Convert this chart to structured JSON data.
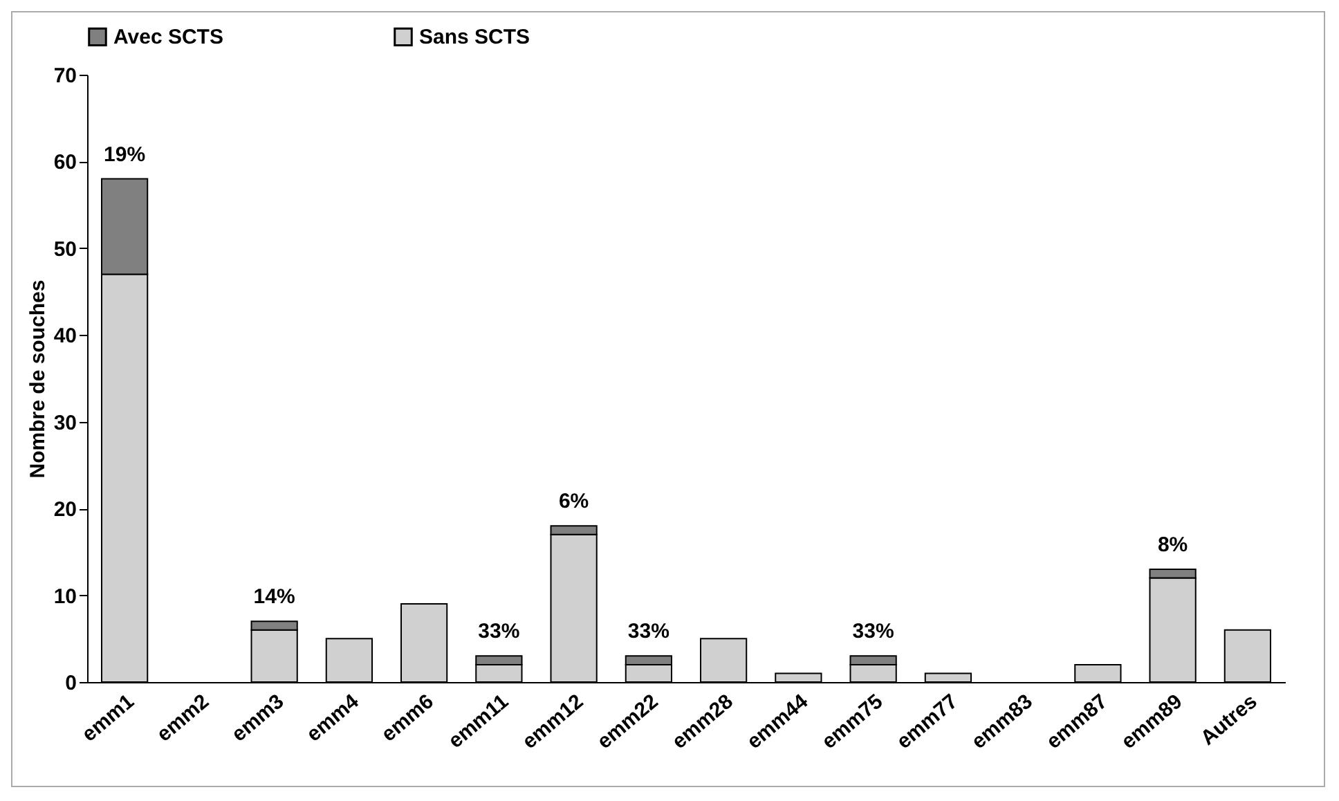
{
  "chart_data": {
    "type": "bar",
    "stacked": true,
    "ylabel": "Nombre de souches",
    "categories": [
      "emm1",
      "emm2",
      "emm3",
      "emm4",
      "emm6",
      "emm11",
      "emm12",
      "emm22",
      "emm28",
      "emm44",
      "emm75",
      "emm77",
      "emm83",
      "emm87",
      "emm89",
      "Autres"
    ],
    "series": [
      {
        "name": "Sans SCTS",
        "color": "#d0d0d0",
        "values": [
          47,
          0,
          6,
          5,
          9,
          2,
          17,
          2,
          5,
          1,
          2,
          1,
          0,
          2,
          12,
          6
        ]
      },
      {
        "name": "Avec SCTS",
        "color": "#808080",
        "values": [
          11,
          0,
          1,
          0,
          0,
          1,
          1,
          1,
          0,
          0,
          1,
          0,
          0,
          0,
          1,
          0
        ]
      }
    ],
    "ylim": [
      0,
      70
    ],
    "yticks": [
      0,
      10,
      20,
      30,
      40,
      50,
      60,
      70
    ],
    "legend": "top",
    "annotations": [
      {
        "text": "19%",
        "x": "emm1",
        "y": 58
      },
      {
        "text": "14%",
        "x": "emm3",
        "y": 7
      },
      {
        "text": "33%",
        "x": "emm11",
        "y": 3
      },
      {
        "text": "6%",
        "x": "emm12",
        "y": 18
      },
      {
        "text": "33%",
        "x": "emm22",
        "y": 3
      },
      {
        "text": "33%",
        "x": "emm75",
        "y": 3
      },
      {
        "text": "8%",
        "x": "emm89",
        "y": 13
      }
    ]
  }
}
